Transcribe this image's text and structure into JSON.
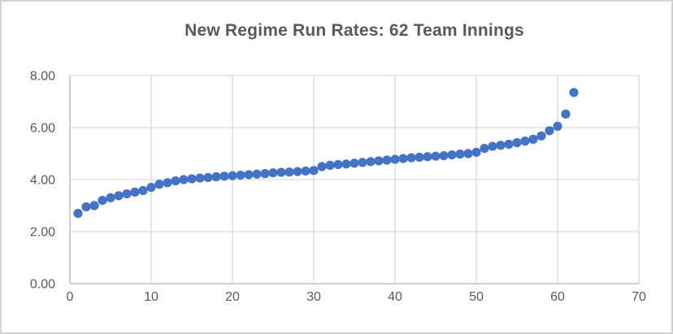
{
  "window": {
    "background_color": "#FFFFFF",
    "border_color": "#D4D2D2"
  },
  "chart_data": {
    "type": "scatter",
    "title": "New Regime Run Rates: 62 Team Innings",
    "xlabel": "",
    "ylabel": "",
    "xlim": [
      0,
      70
    ],
    "ylim": [
      0,
      8
    ],
    "x_ticks": [
      0,
      10,
      20,
      30,
      40,
      50,
      60,
      70
    ],
    "x_tick_labels": [
      "0",
      "10",
      "20",
      "30",
      "40",
      "50",
      "60",
      "70"
    ],
    "y_ticks": [
      0,
      2,
      4,
      6,
      8
    ],
    "y_tick_labels": [
      "0.00",
      "2.00",
      "4.00",
      "6.00",
      "8.00"
    ],
    "grid": true,
    "legend": false,
    "marker_color": "#4472C4",
    "text_color": "#595959",
    "gridline_color": "#D9D9D9",
    "axis_line_color": "#BFBFBF",
    "x": [
      1,
      2,
      3,
      4,
      5,
      6,
      7,
      8,
      9,
      10,
      11,
      12,
      13,
      14,
      15,
      16,
      17,
      18,
      19,
      20,
      21,
      22,
      23,
      24,
      25,
      26,
      27,
      28,
      29,
      30,
      31,
      32,
      33,
      34,
      35,
      36,
      37,
      38,
      39,
      40,
      41,
      42,
      43,
      44,
      45,
      46,
      47,
      48,
      49,
      50,
      51,
      52,
      53,
      54,
      55,
      56,
      57,
      58,
      59,
      60,
      61,
      62
    ],
    "values": [
      2.7,
      2.95,
      3.0,
      3.2,
      3.3,
      3.38,
      3.45,
      3.52,
      3.58,
      3.7,
      3.82,
      3.88,
      3.95,
      4.0,
      4.03,
      4.06,
      4.08,
      4.11,
      4.13,
      4.15,
      4.17,
      4.19,
      4.21,
      4.23,
      4.26,
      4.28,
      4.29,
      4.31,
      4.33,
      4.35,
      4.5,
      4.55,
      4.58,
      4.6,
      4.63,
      4.66,
      4.69,
      4.72,
      4.75,
      4.78,
      4.81,
      4.84,
      4.86,
      4.88,
      4.9,
      4.92,
      4.95,
      4.98,
      5.0,
      5.05,
      5.2,
      5.28,
      5.32,
      5.36,
      5.42,
      5.48,
      5.55,
      5.68,
      5.88,
      6.05,
      6.52,
      7.35
    ]
  }
}
